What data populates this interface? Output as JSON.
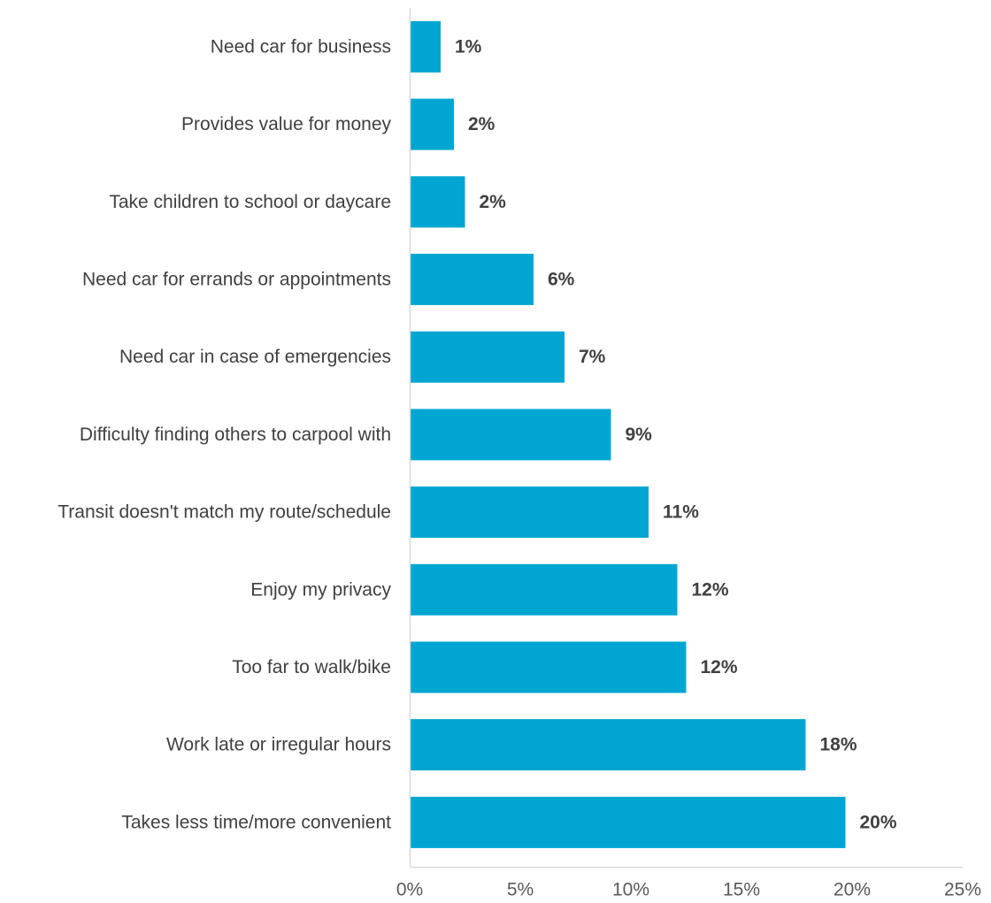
{
  "chart_data": {
    "type": "bar",
    "orientation": "horizontal",
    "categories": [
      "Need car for business",
      "Provides value for money",
      "Take children to school or daycare",
      "Need car for errands or appointments",
      "Need car in case of emergencies",
      "Difficulty finding others to carpool with",
      "Transit doesn't match my route/schedule",
      "Enjoy my privacy",
      "Too far to walk/bike",
      "Work late or irregular hours",
      "Takes less time/more convenient"
    ],
    "values": [
      1.4,
      2.0,
      2.5,
      5.6,
      7.0,
      9.1,
      10.8,
      12.1,
      12.5,
      17.9,
      19.7
    ],
    "data_labels": [
      "1%",
      "2%",
      "2%",
      "6%",
      "7%",
      "9%",
      "11%",
      "12%",
      "12%",
      "18%",
      "20%"
    ],
    "x_ticks": [
      "0%",
      "5%",
      "10%",
      "15%",
      "20%",
      "25%"
    ],
    "xlim": [
      0,
      25
    ],
    "title": "",
    "xlabel": "",
    "ylabel": "",
    "grid": false,
    "legend": "none",
    "colors": {
      "bar": "#00A6D1",
      "axis": "#D9D9D9",
      "label_text": "#404040",
      "tick_text": "#595959"
    }
  }
}
